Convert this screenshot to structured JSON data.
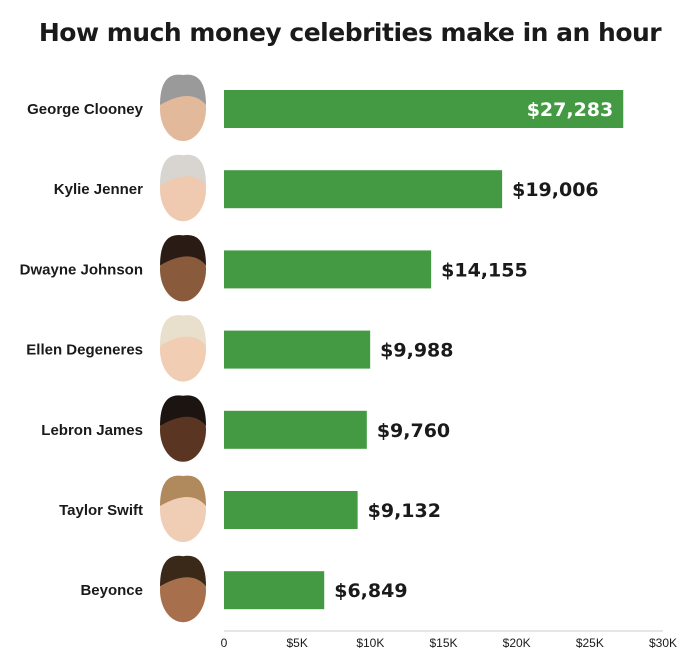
{
  "colors": {
    "bar": "#439a43",
    "axis": "#cccccc",
    "text": "#1a1a1a"
  },
  "chart_data": {
    "type": "bar",
    "orientation": "horizontal",
    "title": "How much money celebrities make in an hour",
    "categories": [
      "George Clooney",
      "Kylie Jenner",
      "Dwayne Johnson",
      "Ellen Degeneres",
      "Lebron James",
      "Taylor Swift",
      "Beyonce"
    ],
    "values": [
      27283,
      19006,
      14155,
      9988,
      9760,
      9132,
      6849
    ],
    "value_labels": [
      "$27,283",
      "$19,006",
      "$14,155",
      "$9,988",
      "$9,760",
      "$9,132",
      "$6,849"
    ],
    "xlim": [
      0,
      30000
    ],
    "x_ticks": [
      0,
      5000,
      10000,
      15000,
      20000,
      25000,
      30000
    ],
    "x_tick_labels": [
      "0",
      "$5K",
      "$10K",
      "$15K",
      "$20K",
      "$25K",
      "$30K"
    ],
    "grid": false,
    "category_icons": [
      "face-photo",
      "face-photo",
      "face-photo",
      "face-photo",
      "face-photo",
      "face-photo",
      "face-photo"
    ]
  }
}
